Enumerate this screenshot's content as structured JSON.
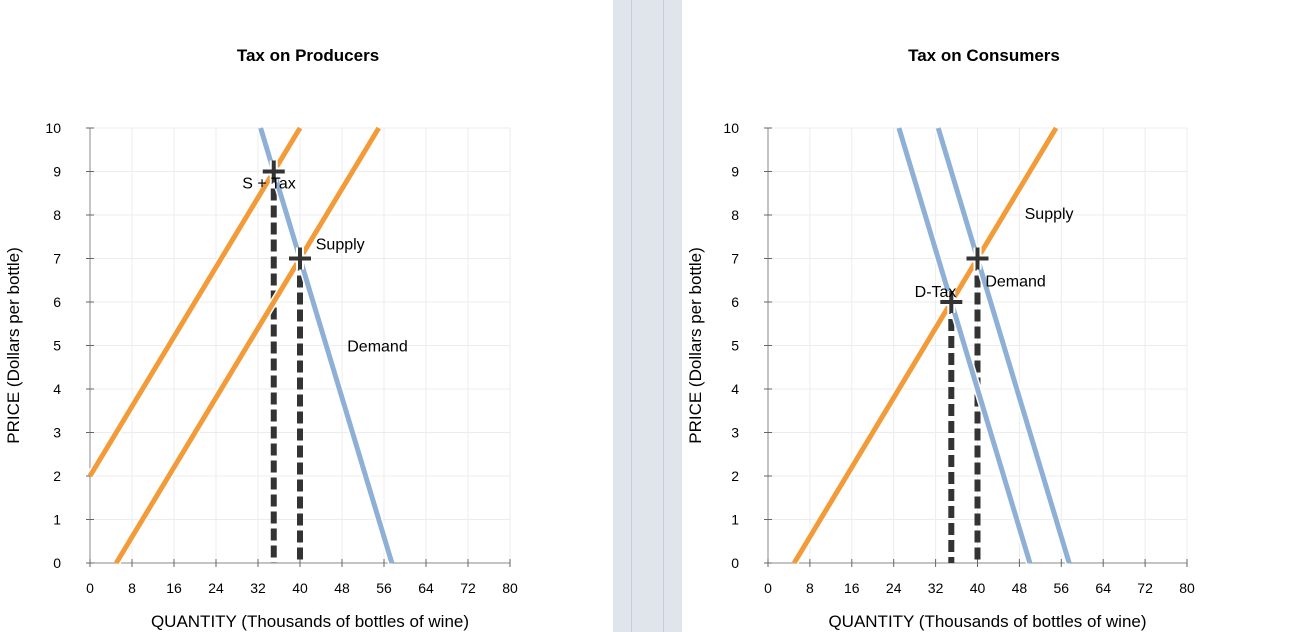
{
  "chart_data": [
    {
      "type": "line",
      "title": "Tax on Producers",
      "xlabel": "QUANTITY (Thousands of bottles of wine)",
      "ylabel": "PRICE (Dollars per bottle)",
      "xlim": [
        0,
        80
      ],
      "ylim": [
        0,
        10
      ],
      "xticks": [
        0,
        8,
        16,
        24,
        32,
        40,
        48,
        56,
        64,
        72,
        80
      ],
      "yticks": [
        0,
        1,
        2,
        3,
        4,
        5,
        6,
        7,
        8,
        9,
        10
      ],
      "grid": true,
      "series": [
        {
          "role": "s-tax",
          "color": "#f29b38",
          "x": [
            0,
            40
          ],
          "y": [
            2,
            10
          ]
        },
        {
          "role": "supply",
          "color": "#f29b38",
          "x": [
            5,
            55
          ],
          "y": [
            0,
            10
          ]
        },
        {
          "role": "demand",
          "color": "#8fb0d6",
          "x": [
            32.5,
            57.5
          ],
          "y": [
            10,
            0
          ]
        }
      ],
      "points": [
        {
          "x": 35,
          "y": 9
        },
        {
          "x": 40,
          "y": 7
        }
      ],
      "annotations": [
        {
          "text": "S + Tax",
          "x": 29,
          "y": 8.75
        },
        {
          "text": "Supply",
          "x": 43,
          "y": 7.35
        },
        {
          "text": "Demand",
          "x": 49,
          "y": 5
        }
      ]
    },
    {
      "type": "line",
      "title": "Tax on Consumers",
      "xlabel": "QUANTITY (Thousands of bottles of wine)",
      "ylabel": "PRICE (Dollars per bottle)",
      "xlim": [
        0,
        80
      ],
      "ylim": [
        0,
        10
      ],
      "xticks": [
        0,
        8,
        16,
        24,
        32,
        40,
        48,
        56,
        64,
        72,
        80
      ],
      "yticks": [
        0,
        1,
        2,
        3,
        4,
        5,
        6,
        7,
        8,
        9,
        10
      ],
      "grid": true,
      "series": [
        {
          "role": "supply",
          "color": "#f29b38",
          "x": [
            5,
            55
          ],
          "y": [
            0,
            10
          ]
        },
        {
          "role": "demand",
          "color": "#8fb0d6",
          "x": [
            32.5,
            57.5
          ],
          "y": [
            10,
            0
          ]
        },
        {
          "role": "d-tax",
          "color": "#8fb0d6",
          "x": [
            25,
            50
          ],
          "y": [
            10,
            0
          ]
        }
      ],
      "points": [
        {
          "x": 35,
          "y": 6
        },
        {
          "x": 40,
          "y": 7
        }
      ],
      "annotations": [
        {
          "text": "Supply",
          "x": 49,
          "y": 8.05
        },
        {
          "text": "Demand",
          "x": 41.5,
          "y": 6.5
        },
        {
          "text": "D-Tax",
          "x": 28,
          "y": 6.25
        }
      ]
    }
  ]
}
